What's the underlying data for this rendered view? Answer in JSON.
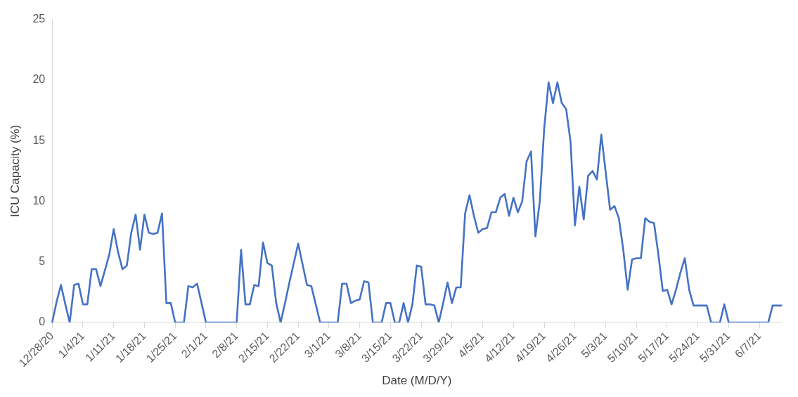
{
  "chart_data": {
    "type": "line",
    "xlabel": "Date (M/D/Y)",
    "ylabel": "ICU Capacity (%)",
    "categories": [
      "12/28/20",
      null,
      null,
      null,
      null,
      null,
      null,
      "1/4/21",
      null,
      null,
      null,
      null,
      null,
      null,
      "1/11/21",
      null,
      null,
      null,
      null,
      null,
      null,
      "1/18/21",
      null,
      null,
      null,
      null,
      null,
      null,
      "1/25/21",
      null,
      null,
      null,
      null,
      null,
      null,
      "2/1/21",
      null,
      null,
      null,
      null,
      null,
      null,
      "2/8/21",
      null,
      null,
      null,
      null,
      null,
      null,
      "2/15/21",
      null,
      null,
      null,
      null,
      null,
      null,
      "2/22/21",
      null,
      null,
      null,
      null,
      null,
      null,
      "3/1/21",
      null,
      null,
      null,
      null,
      null,
      null,
      "3/8/21",
      null,
      null,
      null,
      null,
      null,
      null,
      "3/15/21",
      null,
      null,
      null,
      null,
      null,
      null,
      "3/22/21",
      null,
      null,
      null,
      null,
      null,
      null,
      "3/29/21",
      null,
      null,
      null,
      null,
      null,
      null,
      "4/5/21",
      null,
      null,
      null,
      null,
      null,
      null,
      "4/12/21",
      null,
      null,
      null,
      null,
      null,
      null,
      "4/19/21",
      null,
      null,
      null,
      null,
      null,
      null,
      "4/26/21",
      null,
      null,
      null,
      null,
      null,
      null,
      "5/3/21",
      null,
      null,
      null,
      null,
      null,
      null,
      "5/10/21",
      null,
      null,
      null,
      null,
      null,
      null,
      "5/17/21",
      null,
      null,
      null,
      null,
      null,
      null,
      "5/24/21",
      null,
      null,
      null,
      null,
      null,
      null,
      "5/31/21",
      null,
      null,
      null,
      null,
      null,
      null,
      "6/7/21",
      null,
      null,
      null,
      null,
      null
    ],
    "series": [
      {
        "color": "#4472c4",
        "values": [
          0,
          1.7,
          3.1,
          1.5,
          0,
          3.1,
          3.2,
          1.5,
          1.5,
          4.4,
          4.4,
          3.0,
          4.3,
          5.6,
          7.7,
          5.8,
          4.4,
          4.7,
          7.4,
          8.9,
          6.0,
          8.9,
          7.4,
          7.3,
          7.4,
          9.0,
          1.6,
          1.6,
          0,
          0,
          0,
          3.0,
          2.9,
          3.2,
          1.6,
          0,
          0,
          0,
          0,
          0,
          0,
          0,
          0,
          6.0,
          1.5,
          1.5,
          3.1,
          3.0,
          6.6,
          4.9,
          4.7,
          1.6,
          0,
          1.6,
          3.3,
          4.9,
          6.5,
          4.8,
          3.1,
          3.0,
          1.5,
          0,
          0,
          0,
          0,
          0,
          3.2,
          3.2,
          1.6,
          1.8,
          1.9,
          3.4,
          3.3,
          0,
          0,
          0,
          1.6,
          1.6,
          0,
          0,
          1.6,
          0,
          1.5,
          4.7,
          4.6,
          1.5,
          1.5,
          1.4,
          0,
          1.6,
          3.3,
          1.6,
          2.9,
          2.9,
          9.0,
          10.5,
          8.8,
          7.4,
          7.7,
          7.8,
          9.1,
          9.1,
          10.3,
          10.6,
          8.8,
          10.3,
          9.1,
          10.0,
          13.3,
          14.1,
          7.1,
          10.0,
          16.0,
          19.8,
          18.1,
          19.8,
          18.1,
          17.6,
          14.9,
          8.0,
          11.2,
          8.5,
          12.1,
          12.5,
          11.8,
          15.5,
          12.4,
          9.3,
          9.6,
          8.6,
          6.0,
          2.7,
          5.2,
          5.3,
          5.3,
          8.6,
          8.3,
          8.2,
          5.6,
          2.6,
          2.7,
          1.5,
          2.7,
          4.1,
          5.3,
          2.7,
          1.4,
          1.4,
          1.4,
          1.4,
          0,
          0,
          0,
          1.5,
          0,
          0,
          0,
          0,
          0,
          0,
          0,
          0,
          0,
          0,
          1.4,
          1.4,
          1.4
        ]
      }
    ],
    "ylim": [
      0,
      25
    ],
    "yticks": [
      0,
      5,
      10,
      15,
      20,
      25
    ],
    "marker": "none",
    "line_style": "solid"
  }
}
